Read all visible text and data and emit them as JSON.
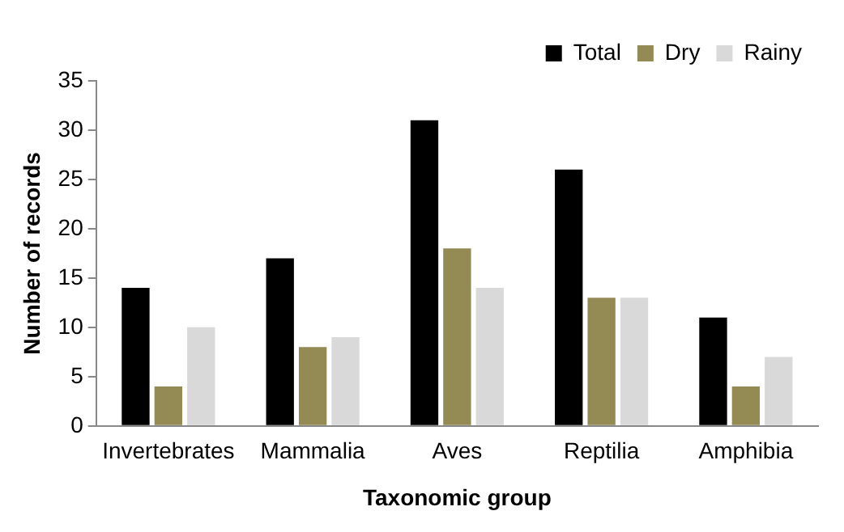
{
  "chart_data": {
    "type": "bar",
    "xlabel": "Taxonomic group",
    "ylabel": "Number of records",
    "categories": [
      "Invertebrates",
      "Mammalia",
      "Aves",
      "Reptilia",
      "Amphibia"
    ],
    "series": [
      {
        "name": "Total",
        "color": "#000000",
        "values": [
          14,
          17,
          31,
          26,
          11
        ]
      },
      {
        "name": "Dry",
        "color": "#948a54",
        "values": [
          4,
          8,
          18,
          13,
          4
        ]
      },
      {
        "name": "Rainy",
        "color": "#d9d9d9",
        "values": [
          10,
          9,
          14,
          13,
          7
        ]
      }
    ],
    "ylim": [
      0,
      35
    ],
    "yticks": [
      0,
      5,
      10,
      15,
      20,
      25,
      30,
      35
    ],
    "grid": false,
    "legend": "top right"
  }
}
